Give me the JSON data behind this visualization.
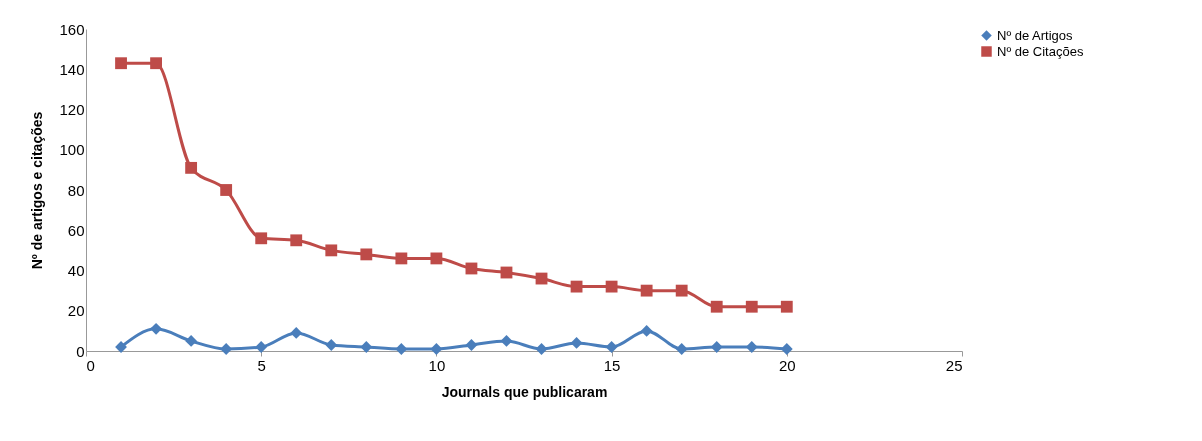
{
  "chart_data": {
    "type": "line",
    "xlabel": "Journals que publicaram",
    "ylabel": "Nº de artigos e citações",
    "x": [
      1,
      2,
      3,
      4,
      5,
      6,
      7,
      8,
      9,
      10,
      11,
      12,
      13,
      14,
      15,
      16,
      17,
      18,
      19,
      20
    ],
    "series": [
      {
        "name": "Nº de Artigos",
        "color": "#4a7ebb",
        "marker": "diamond",
        "values": [
          2,
          11,
          5,
          1,
          2,
          9,
          3,
          2,
          1,
          1,
          3,
          5,
          1,
          4,
          2,
          10,
          1,
          2,
          2,
          1
        ]
      },
      {
        "name": "Nº de Citações",
        "color": "#be4b48",
        "marker": "square",
        "values": [
          143,
          143,
          91,
          80,
          56,
          55,
          50,
          48,
          46,
          46,
          41,
          39,
          36,
          32,
          32,
          30,
          30,
          22,
          22,
          22
        ]
      }
    ],
    "xlim": [
      0,
      25
    ],
    "xticks": [
      0,
      5,
      10,
      15,
      20,
      25
    ],
    "ylim": [
      0,
      160
    ],
    "yticks": [
      0,
      20,
      40,
      60,
      80,
      100,
      120,
      140,
      160
    ],
    "grid": false,
    "legend": "right",
    "line_style": "solid"
  }
}
